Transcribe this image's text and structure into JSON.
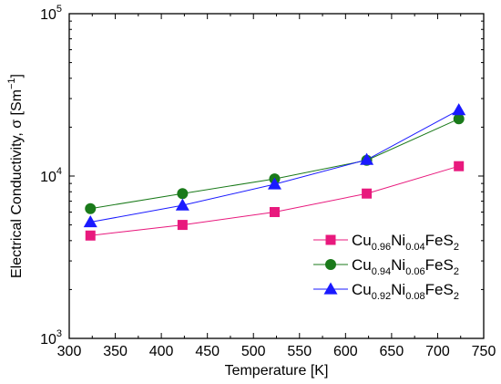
{
  "chart_data": {
    "type": "line",
    "xlabel": "Temperature [K]",
    "ylabel": "Electrical Conductivity, σ [Sm",
    "ylabel_sup": "−1",
    "ylabel_close": "]",
    "xlim": [
      300,
      750
    ],
    "ylim": [
      1000,
      100000
    ],
    "yscale": "log",
    "x_ticks": [
      300,
      350,
      400,
      450,
      500,
      550,
      600,
      650,
      700,
      750
    ],
    "y_ticks": [
      {
        "value": 1000,
        "base": "10",
        "exp": "3"
      },
      {
        "value": 10000,
        "base": "10",
        "exp": "4"
      },
      {
        "value": 100000,
        "base": "10",
        "exp": "5"
      }
    ],
    "grid": false,
    "legend_position": "bottom-right",
    "series": [
      {
        "label_parts": [
          [
            "Cu",
            ""
          ],
          [
            "0.96",
            "sub"
          ],
          [
            "Ni",
            ""
          ],
          [
            "0.04",
            "sub"
          ],
          [
            "FeS",
            ""
          ],
          [
            "2",
            "sub"
          ]
        ],
        "color": "#e8197d",
        "marker": "square",
        "x": [
          323,
          423,
          523,
          623,
          723
        ],
        "y": [
          4300,
          5000,
          6000,
          7800,
          11500
        ]
      },
      {
        "label_parts": [
          [
            "Cu",
            ""
          ],
          [
            "0.94",
            "sub"
          ],
          [
            "Ni",
            ""
          ],
          [
            "0.06",
            "sub"
          ],
          [
            "FeS",
            ""
          ],
          [
            "2",
            "sub"
          ]
        ],
        "color": "#1a7a1a",
        "marker": "circle",
        "x": [
          323,
          423,
          523,
          623,
          723
        ],
        "y": [
          6300,
          7800,
          9600,
          12500,
          22500
        ]
      },
      {
        "label_parts": [
          [
            "Cu",
            ""
          ],
          [
            "0.92",
            "sub"
          ],
          [
            "Ni",
            ""
          ],
          [
            "0.08",
            "sub"
          ],
          [
            "FeS",
            ""
          ],
          [
            "2",
            "sub"
          ]
        ],
        "color": "#1a1aff",
        "marker": "triangle",
        "x": [
          323,
          423,
          523,
          623,
          723
        ],
        "y": [
          5200,
          6600,
          8900,
          12600,
          25500
        ]
      }
    ]
  }
}
